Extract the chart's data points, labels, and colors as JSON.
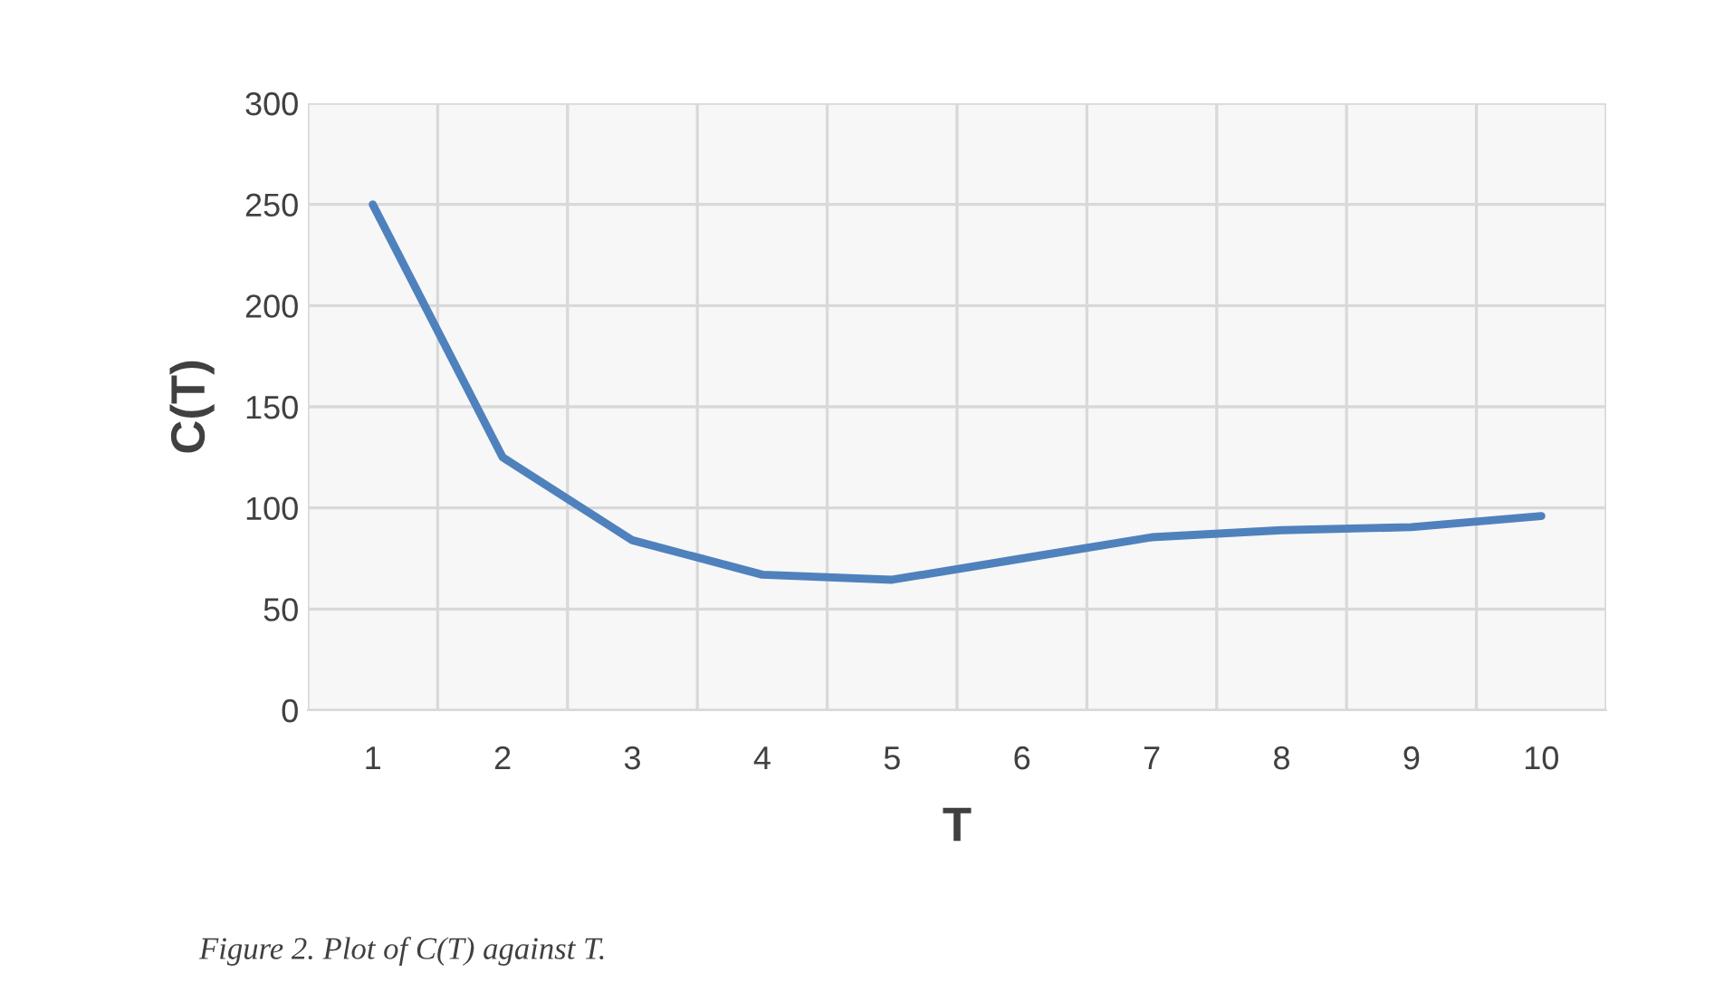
{
  "chart_data": {
    "type": "line",
    "xlabel": "T",
    "ylabel": "C(T)",
    "categories": [
      "1",
      "2",
      "3",
      "4",
      "5",
      "6",
      "7",
      "8",
      "9",
      "10"
    ],
    "series": [
      {
        "color": "#4f81bd",
        "values": [
          250,
          125,
          84,
          67,
          64.5,
          75,
          85.5,
          89,
          90.5,
          96
        ]
      }
    ],
    "ylim": [
      0,
      300
    ],
    "yticks": [
      0,
      50,
      100,
      150,
      200,
      250,
      300
    ],
    "grid": true,
    "marker": "none",
    "line_style": "solid",
    "legend": false,
    "annotations": [
      "Figure 2. Plot of C(T) against T."
    ]
  }
}
